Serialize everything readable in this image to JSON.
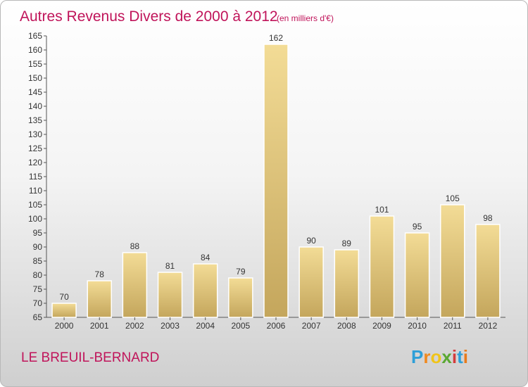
{
  "title": "Autres Revenus Divers de 2000 à 2012",
  "subtitle": "(en milliers d'€)",
  "location": "LE BREUIL-BERNARD",
  "brand": {
    "letters": [
      "P",
      "r",
      "o",
      "x",
      "i",
      "t",
      "i"
    ],
    "colors": [
      "#2e9fd8",
      "#f0891e",
      "#f0c419",
      "#5aa832",
      "#d43b3b",
      "#2e9fd8",
      "#e87a1a"
    ]
  },
  "chart_data": {
    "type": "bar",
    "categories": [
      "2000",
      "2001",
      "2002",
      "2003",
      "2004",
      "2005",
      "2006",
      "2007",
      "2008",
      "2009",
      "2010",
      "2011",
      "2012"
    ],
    "values": [
      70,
      78,
      88,
      81,
      84,
      79,
      162,
      90,
      89,
      101,
      95,
      105,
      98
    ],
    "ylim": [
      65,
      165
    ],
    "ytick_step": 5,
    "grid": false,
    "bar_color_light": "#f3dc96",
    "bar_color_dark": "#c4a65c"
  }
}
